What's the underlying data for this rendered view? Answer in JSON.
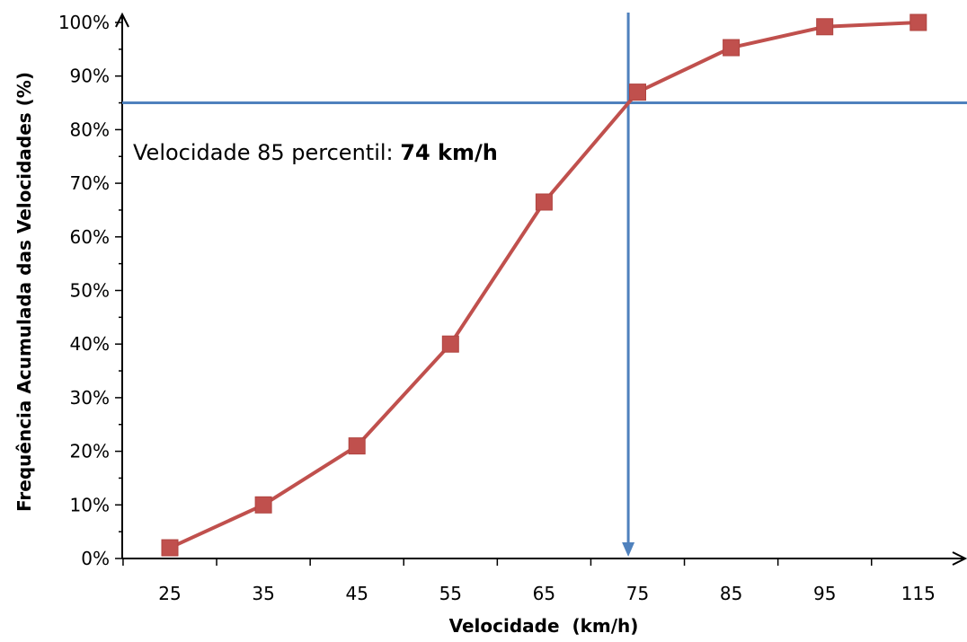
{
  "chart_data": {
    "type": "line",
    "xlabel": "Velocidade  (km/h)",
    "ylabel": "Frequência Acumulada das Velocidades (%)",
    "categories": [
      "25",
      "35",
      "45",
      "55",
      "65",
      "75",
      "85",
      "95",
      "115"
    ],
    "series": [
      {
        "values": [
          2,
          10,
          21,
          40,
          66.5,
          87,
          95.3,
          99.2,
          100
        ]
      }
    ],
    "ylim": [
      0,
      100
    ],
    "y_ticks": [
      "0%",
      "10%",
      "20%",
      "30%",
      "40%",
      "50%",
      "60%",
      "70%",
      "80%",
      "90%",
      "100%"
    ],
    "grid": false,
    "legend": "none",
    "reference_lines": {
      "horizontal_y": 85,
      "vertical_x": 74
    },
    "annotation": {
      "prefix": "Velocidade 85 percentil: ",
      "value": "74 km/h"
    },
    "colors": {
      "series": "#C0504D",
      "reference": "#4F81BD",
      "axis": "#000000"
    }
  }
}
